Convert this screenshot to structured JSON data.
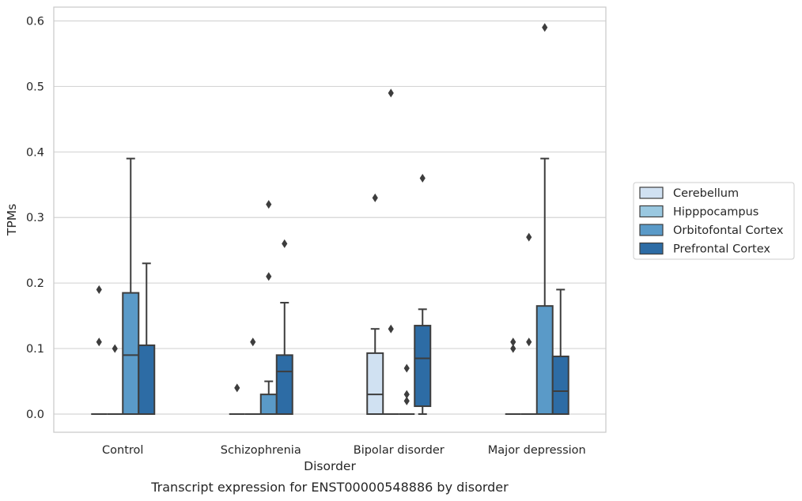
{
  "caption": "Transcript expression for ENST00000548886 by disorder",
  "chart_data": {
    "type": "box",
    "xlabel": "Disorder",
    "ylabel": "TPMs",
    "categories": [
      "Control",
      "Schizophrenia",
      "Bipolar disorder",
      "Major depression"
    ],
    "ylim": [
      -0.03,
      0.62
    ],
    "yticks": [
      "0.0",
      "0.1",
      "0.2",
      "0.3",
      "0.4",
      "0.5",
      "0.6"
    ],
    "grid": "horizontal",
    "legend_position": "right",
    "series": [
      {
        "name": "Cerebellum",
        "color": "#d0e1f2",
        "boxes": [
          {
            "q1": 0,
            "median": 0,
            "q3": 0,
            "whislo": 0,
            "whishi": 0,
            "fliers": [
              0.19,
              0.11
            ]
          },
          {
            "q1": 0,
            "median": 0,
            "q3": 0,
            "whislo": 0,
            "whishi": 0,
            "fliers": [
              0.04
            ]
          },
          {
            "q1": 0,
            "median": 0.03,
            "q3": 0.093,
            "whislo": 0,
            "whishi": 0.13,
            "fliers": [
              0.33
            ]
          },
          {
            "q1": 0,
            "median": 0,
            "q3": 0,
            "whislo": 0,
            "whishi": 0,
            "fliers": [
              0.11,
              0.1
            ]
          }
        ]
      },
      {
        "name": "Hipppocampus",
        "color": "#9ac8e0",
        "boxes": [
          {
            "q1": 0,
            "median": 0,
            "q3": 0,
            "whislo": 0,
            "whishi": 0,
            "fliers": [
              0.1
            ]
          },
          {
            "q1": 0,
            "median": 0,
            "q3": 0,
            "whislo": 0,
            "whishi": 0,
            "fliers": [
              0.11
            ]
          },
          {
            "q1": 0,
            "median": 0,
            "q3": 0,
            "whislo": 0,
            "whishi": 0,
            "fliers": [
              0.49,
              0.13
            ]
          },
          {
            "q1": 0,
            "median": 0,
            "q3": 0,
            "whislo": 0,
            "whishi": 0,
            "fliers": [
              0.27,
              0.11
            ]
          }
        ]
      },
      {
        "name": "Orbitofontal Cortex",
        "color": "#5a9ac8",
        "boxes": [
          {
            "q1": 0,
            "median": 0.09,
            "q3": 0.185,
            "whislo": 0,
            "whishi": 0.39,
            "fliers": []
          },
          {
            "q1": 0,
            "median": 0,
            "q3": 0.03,
            "whislo": 0,
            "whishi": 0.05,
            "fliers": [
              0.32,
              0.21
            ]
          },
          {
            "q1": 0,
            "median": 0,
            "q3": 0,
            "whislo": 0,
            "whishi": 0,
            "fliers": [
              0.07,
              0.03,
              0.02
            ]
          },
          {
            "q1": 0,
            "median": 0,
            "q3": 0.165,
            "whislo": 0,
            "whishi": 0.39,
            "fliers": [
              0.59
            ]
          }
        ]
      },
      {
        "name": "Prefrontal Cortex",
        "color": "#2d6ca5",
        "boxes": [
          {
            "q1": 0,
            "median": 0,
            "q3": 0.105,
            "whislo": 0,
            "whishi": 0.23,
            "fliers": []
          },
          {
            "q1": 0,
            "median": 0.065,
            "q3": 0.09,
            "whislo": 0,
            "whishi": 0.17,
            "fliers": [
              0.26
            ]
          },
          {
            "q1": 0.012,
            "median": 0.085,
            "q3": 0.135,
            "whislo": 0,
            "whishi": 0.16,
            "fliers": [
              0.36
            ]
          },
          {
            "q1": 0,
            "median": 0.035,
            "q3": 0.088,
            "whislo": 0,
            "whishi": 0.19,
            "fliers": []
          }
        ]
      }
    ]
  }
}
